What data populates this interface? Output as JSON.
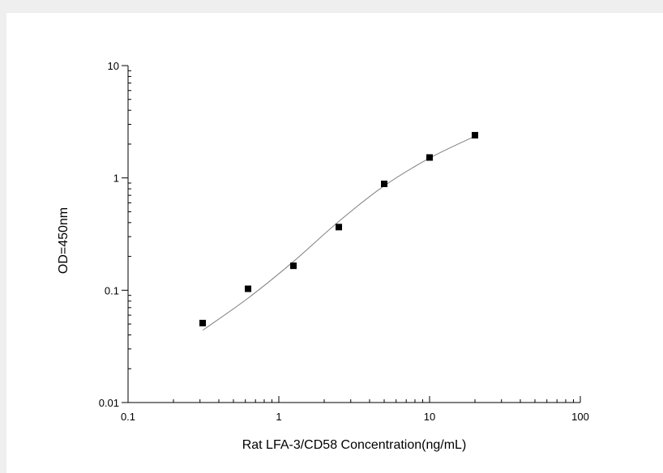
{
  "chart_data": {
    "type": "scatter",
    "title": "",
    "xlabel": "Rat LFA-3/CD58 Concentration(ng/mL)",
    "ylabel": "OD=450nm",
    "xscale": "log",
    "yscale": "log",
    "xlim": [
      0.1,
      100
    ],
    "ylim": [
      0.01,
      10
    ],
    "xticks": [
      {
        "value": 0.1,
        "label": "0.1"
      },
      {
        "value": 1,
        "label": "1"
      },
      {
        "value": 10,
        "label": "10"
      },
      {
        "value": 100,
        "label": "100"
      }
    ],
    "yticks": [
      {
        "value": 0.01,
        "label": "0.01"
      },
      {
        "value": 0.1,
        "label": "0.1"
      },
      {
        "value": 1,
        "label": "1"
      },
      {
        "value": 10,
        "label": "10"
      }
    ],
    "grid": false,
    "legend": "none",
    "series": [
      {
        "points": [
          {
            "x": 0.3125,
            "y": 0.051
          },
          {
            "x": 0.625,
            "y": 0.103
          },
          {
            "x": 1.25,
            "y": 0.165
          },
          {
            "x": 2.5,
            "y": 0.365
          },
          {
            "x": 5,
            "y": 0.885
          },
          {
            "x": 10,
            "y": 1.52
          },
          {
            "x": 20,
            "y": 2.4
          }
        ],
        "marker": "square",
        "color": "#000000"
      }
    ],
    "fit_curve": {
      "color": "#808080",
      "points": [
        {
          "x": 0.3125,
          "y": 0.044
        },
        {
          "x": 0.625,
          "y": 0.085
        },
        {
          "x": 1.25,
          "y": 0.18
        },
        {
          "x": 2.5,
          "y": 0.41
        },
        {
          "x": 5,
          "y": 0.85
        },
        {
          "x": 10,
          "y": 1.5
        },
        {
          "x": 20,
          "y": 2.35
        }
      ]
    }
  }
}
